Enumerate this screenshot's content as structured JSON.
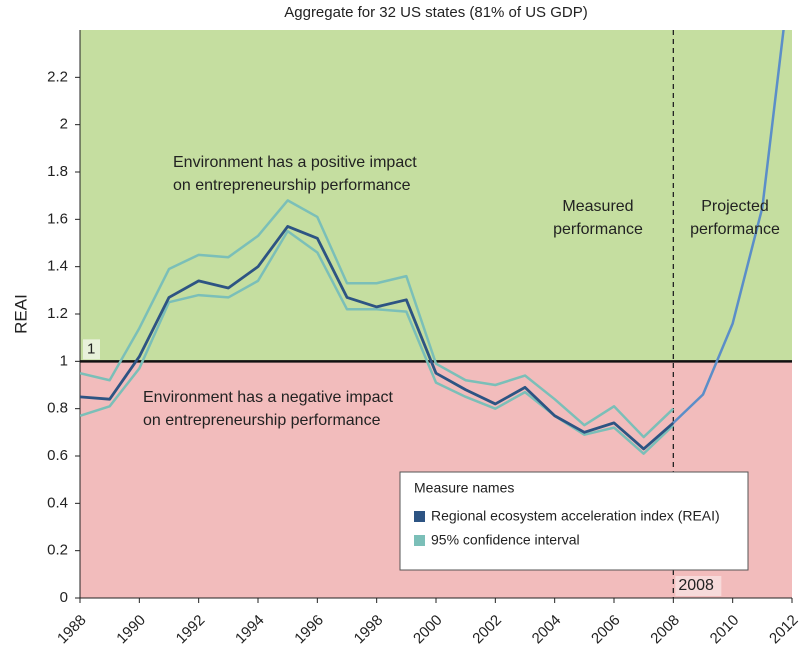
{
  "chart_data": {
    "type": "line",
    "title": "Aggregate for 32 US states (81% of US GDP)",
    "y_label": "REAI",
    "x": [
      1988,
      1989,
      1990,
      1991,
      1992,
      1993,
      1994,
      1995,
      1996,
      1997,
      1998,
      1999,
      2000,
      2001,
      2002,
      2003,
      2004,
      2005,
      2006,
      2007,
      2008,
      2009,
      2010,
      2011,
      2012
    ],
    "series": [
      {
        "name": "Regional ecosystem acceleration index (REAI)",
        "color": "#2d5483",
        "values": [
          0.85,
          0.84,
          1.02,
          1.27,
          1.34,
          1.31,
          1.4,
          1.57,
          1.52,
          1.27,
          1.23,
          1.26,
          0.95,
          0.88,
          0.82,
          0.89,
          0.77,
          0.7,
          0.74,
          0.63,
          0.74,
          null,
          null,
          null,
          null
        ]
      },
      {
        "name": "95% confidence interval",
        "color": "#7bbfb8",
        "upper": [
          0.95,
          0.92,
          1.14,
          1.39,
          1.45,
          1.44,
          1.53,
          1.68,
          1.61,
          1.33,
          1.33,
          1.36,
          0.99,
          0.92,
          0.9,
          0.94,
          0.84,
          0.73,
          0.81,
          0.68,
          0.8,
          null,
          null,
          null,
          null
        ],
        "lower": [
          0.77,
          0.81,
          0.97,
          1.25,
          1.28,
          1.27,
          1.34,
          1.55,
          1.46,
          1.22,
          1.22,
          1.21,
          0.91,
          0.85,
          0.8,
          0.87,
          0.77,
          0.69,
          0.72,
          0.61,
          0.73,
          null,
          null,
          null,
          null
        ]
      }
    ],
    "projected": {
      "color": "#5b8ec8",
      "values": [
        null,
        null,
        null,
        null,
        null,
        null,
        null,
        null,
        null,
        null,
        null,
        null,
        null,
        null,
        null,
        null,
        null,
        null,
        null,
        null,
        0.74,
        0.86,
        1.16,
        1.65,
        2.7
      ]
    },
    "xlim": [
      1988,
      2012
    ],
    "xticks": [
      1988,
      1990,
      1992,
      1994,
      1996,
      1998,
      2000,
      2002,
      2004,
      2006,
      2008,
      2010,
      2012
    ],
    "ylim": [
      0,
      2.4
    ],
    "yticks": [
      0,
      0.2,
      0.4,
      0.6,
      0.8,
      1,
      1.2,
      1.4,
      1.6,
      1.8,
      2,
      2.2
    ],
    "reference_y": 1,
    "reference_x": 2008,
    "positive_color": "#c5dea0",
    "negative_color": "#f2bcbc",
    "legend_title": "Measure names",
    "annotations": {
      "positive": [
        "Environment has a positive impact",
        "on entrepreneurship performance"
      ],
      "negative": [
        "Environment has a negative impact",
        "on entrepreneurship performance"
      ],
      "measured": [
        "Measured",
        "performance"
      ],
      "projected": [
        "Projected",
        "performance"
      ]
    }
  }
}
